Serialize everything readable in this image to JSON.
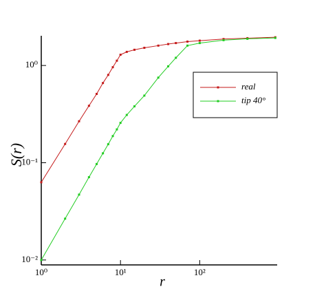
{
  "chart_data": {
    "type": "line",
    "xlabel": "r",
    "ylabel": "S(r)",
    "xscale": "log",
    "yscale": "log",
    "x": [
      1,
      2,
      3,
      4,
      5,
      6,
      7,
      8,
      9,
      10,
      12,
      15,
      20,
      30,
      40,
      50,
      70,
      100,
      200,
      400,
      900
    ],
    "series": [
      {
        "name": "real",
        "color": "#c41a1a",
        "values": [
          0.063,
          0.156,
          0.267,
          0.385,
          0.51,
          0.66,
          0.8,
          0.96,
          1.12,
          1.29,
          1.38,
          1.45,
          1.52,
          1.6,
          1.66,
          1.7,
          1.76,
          1.8,
          1.87,
          1.91,
          1.95
        ]
      },
      {
        "name": "tip 40°",
        "color": "#22cc22",
        "values": [
          0.01,
          0.0266,
          0.047,
          0.071,
          0.097,
          0.125,
          0.155,
          0.188,
          0.22,
          0.257,
          0.31,
          0.38,
          0.49,
          0.75,
          0.98,
          1.2,
          1.6,
          1.7,
          1.82,
          1.88,
          1.92
        ]
      }
    ],
    "xlim": [
      1,
      950
    ],
    "ylim": [
      0.0089,
      2.02
    ],
    "xticks": [
      {
        "value": 1,
        "label": "10⁰"
      },
      {
        "value": 10,
        "label": "10¹"
      },
      {
        "value": 100,
        "label": "10²"
      }
    ],
    "yticks": [
      {
        "value": 0.01,
        "label": "10⁻²"
      },
      {
        "value": 0.1,
        "label": "10⁻¹"
      },
      {
        "value": 1,
        "label": "10⁰"
      }
    ],
    "legend": "upper right"
  }
}
